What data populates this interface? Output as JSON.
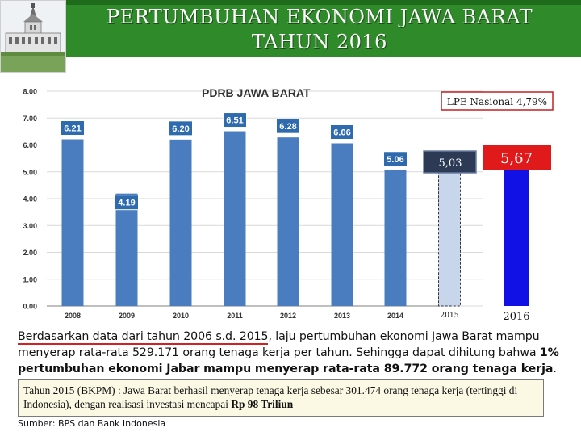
{
  "header": {
    "title_line1": "PERTUMBUHAN EKONOMI JAWA BARAT",
    "title_line2": "TAHUN 2016"
  },
  "chart_data": {
    "type": "bar",
    "title": "PDRB JAWA BARAT",
    "categories": [
      "2008",
      "2009",
      "2010",
      "2011",
      "2012",
      "2013",
      "2014",
      "2015",
      "2016"
    ],
    "values": [
      6.21,
      4.19,
      6.2,
      6.51,
      6.28,
      6.06,
      5.06,
      5.03,
      5.67
    ],
    "data_labels": [
      "6.21",
      "4.19",
      "6.20",
      "6.51",
      "6.28",
      "6.06",
      "5.06",
      "5,03",
      "5,67"
    ],
    "ylim": [
      0,
      8
    ],
    "y_ticks": [
      "0.00",
      "1.00",
      "2.00",
      "3.00",
      "4.00",
      "5.00",
      "6.00",
      "7.00",
      "8.00"
    ],
    "grid": true,
    "annotation": "LPE Nasional 4,79%",
    "colors": {
      "bar": "#4a7cc0",
      "bar_2015": "#c7d6ea",
      "bar_2016": "#1111e6",
      "label_bg": "#2e6aae",
      "label_2016_bg": "#e01a1a"
    }
  },
  "text": {
    "para_underlined": "Berdasarkan data dari tahun 2006 s.d. 2015",
    "para_rest1": ", laju pertumbuhan ekonomi Jawa Barat mampu menyerap rata-rata 529.171 orang tenaga kerja per tahun. Sehingga dapat dihitung bahwa ",
    "para_bold": "1% pertumbuhan ekonomi Jabar mampu menyerap rata-rata 89.772 orang tenaga kerja",
    "para_end": ".",
    "note_text": "Tahun 2015 (BKPM) : Jawa Barat berhasil menyerap tenaga kerja sebesar 301.474 orang tenaga kerja (tertinggi di Indonesia), dengan realisasi investasi mencapai ",
    "note_bold": "Rp 98 Triliun",
    "source": "Sumber: BPS dan Bank Indonesia"
  }
}
